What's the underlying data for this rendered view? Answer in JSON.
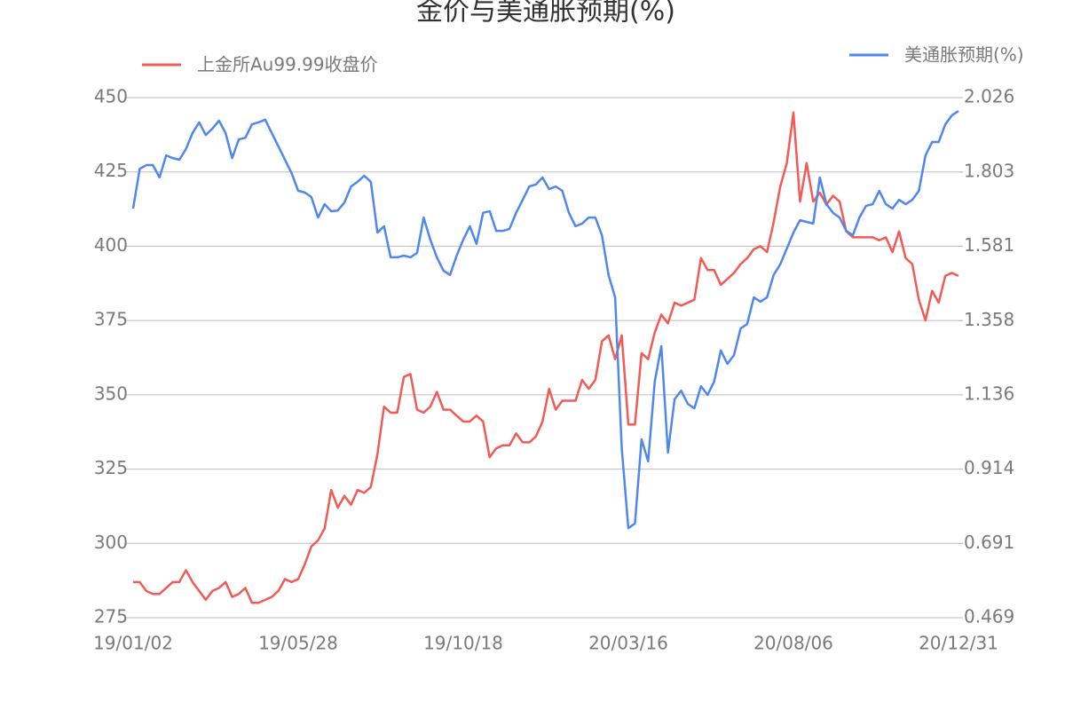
{
  "chart_data": {
    "type": "line",
    "title": "金价与美通胀预期(%)",
    "x": [
      "19/01/02",
      null,
      null,
      null,
      null,
      null,
      null,
      null,
      null,
      null,
      null,
      null,
      null,
      null,
      null,
      null,
      null,
      null,
      null,
      null,
      null,
      null,
      null,
      null,
      null,
      "19/05/28",
      null,
      null,
      null,
      null,
      null,
      null,
      null,
      null,
      null,
      null,
      null,
      null,
      null,
      null,
      null,
      null,
      null,
      null,
      null,
      null,
      null,
      null,
      null,
      null,
      "19/10/18",
      null,
      null,
      null,
      null,
      null,
      null,
      null,
      null,
      null,
      null,
      null,
      null,
      null,
      null,
      null,
      null,
      null,
      null,
      null,
      null,
      null,
      null,
      null,
      null,
      "20/03/16",
      null,
      null,
      null,
      null,
      null,
      null,
      null,
      null,
      null,
      null,
      null,
      null,
      null,
      null,
      null,
      null,
      null,
      null,
      null,
      null,
      null,
      null,
      null,
      null,
      "20/08/06",
      null,
      null,
      null,
      null,
      null,
      null,
      null,
      null,
      null,
      null,
      null,
      null,
      null,
      null,
      null,
      null,
      null,
      null,
      null,
      null,
      null,
      null,
      null,
      null,
      "20/12/31"
    ],
    "series": [
      {
        "name": "上金所Au99.99收盘价",
        "color": "#f25a55",
        "values": [
          287,
          287,
          284,
          283,
          283,
          285,
          287,
          287,
          291,
          287,
          284,
          281,
          284,
          285,
          287,
          282,
          283,
          285,
          280,
          280,
          281,
          282,
          284,
          288,
          287,
          288,
          293,
          299,
          301,
          305,
          318,
          312,
          316,
          313,
          318,
          317,
          319,
          330,
          346,
          344,
          344,
          356,
          357,
          345,
          344,
          346,
          351,
          345,
          345,
          343,
          341,
          341,
          343,
          341,
          329,
          332,
          333,
          333,
          337,
          334,
          334,
          336,
          341,
          352,
          345,
          348,
          348,
          348,
          355,
          352,
          355,
          368,
          370,
          362,
          370,
          340,
          340,
          364,
          362,
          371,
          377,
          374,
          381,
          380,
          381,
          382,
          396,
          392,
          392,
          387,
          389,
          391,
          394,
          396,
          399,
          400,
          398,
          408,
          420,
          428,
          445,
          415,
          428,
          415,
          418,
          414,
          417,
          415,
          405,
          403,
          403,
          403,
          403,
          402,
          403,
          398,
          405,
          396,
          394,
          382,
          375,
          385,
          381,
          390,
          391,
          390
        ]
      },
      {
        "name": "美通胀预期(%)",
        "color": "#4f86f0",
        "axis": "y2",
        "values": [
          1.694,
          1.813,
          1.824,
          1.824,
          1.787,
          1.853,
          1.845,
          1.84,
          1.872,
          1.92,
          1.952,
          1.914,
          1.933,
          1.957,
          1.92,
          1.845,
          1.901,
          1.906,
          1.946,
          1.952,
          1.96,
          1.92,
          1.88,
          1.84,
          1.8,
          1.747,
          1.742,
          1.728,
          1.667,
          1.707,
          1.686,
          1.688,
          1.712,
          1.76,
          1.774,
          1.792,
          1.774,
          1.622,
          1.641,
          1.548,
          1.548,
          1.553,
          1.548,
          1.561,
          1.667,
          1.601,
          1.548,
          1.508,
          1.495,
          1.553,
          1.601,
          1.641,
          1.588,
          1.681,
          1.686,
          1.627,
          1.627,
          1.633,
          1.681,
          1.72,
          1.76,
          1.766,
          1.787,
          1.752,
          1.76,
          1.747,
          1.681,
          1.641,
          1.649,
          1.667,
          1.667,
          1.614,
          1.495,
          1.428,
          0.976,
          0.737,
          0.751,
          1.003,
          0.937,
          1.176,
          1.282,
          0.963,
          1.123,
          1.149,
          1.109,
          1.096,
          1.162,
          1.136,
          1.176,
          1.269,
          1.229,
          1.255,
          1.335,
          1.348,
          1.428,
          1.415,
          1.428,
          1.495,
          1.527,
          1.574,
          1.622,
          1.659,
          1.654,
          1.649,
          1.787,
          1.707,
          1.681,
          1.667,
          1.627,
          1.614,
          1.667,
          1.702,
          1.707,
          1.747,
          1.707,
          1.694,
          1.72,
          1.707,
          1.72,
          1.747,
          1.853,
          1.893,
          1.893,
          1.946,
          1.973,
          1.986
        ]
      }
    ],
    "ylim": [
      275,
      450
    ],
    "yticks": [
      275,
      300,
      325,
      350,
      375,
      400,
      425,
      450
    ],
    "y2lim": [
      0.469,
      2.026
    ],
    "y2ticks": [
      0.469,
      0.691,
      0.914,
      1.136,
      1.358,
      1.581,
      1.803,
      2.026
    ],
    "grid": true
  }
}
